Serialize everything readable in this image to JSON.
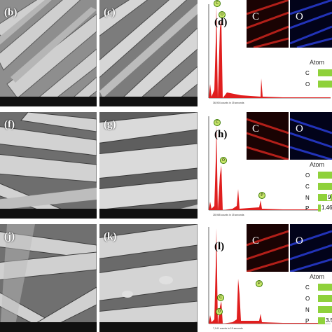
{
  "sem_panels": [
    {
      "label": "(b)"
    },
    {
      "label": "(c)"
    },
    {
      "label": "(f)"
    },
    {
      "label": "(g)"
    },
    {
      "label": "(j)"
    },
    {
      "label": "(k)"
    }
  ],
  "edx_panels": [
    {
      "label": "(d)",
      "maps": [
        {
          "label": "C",
          "color": "#d8261f"
        },
        {
          "label": "O",
          "color": "#2a3fe0"
        }
      ],
      "atomic_title": "Atom",
      "elements": [
        {
          "symbol": "C",
          "value": ""
        },
        {
          "symbol": "O",
          "value": ""
        }
      ],
      "peaks": [
        "C",
        "O"
      ],
      "counts_note": "36,904 counts in 15 seconds"
    },
    {
      "label": "(h)",
      "maps": [
        {
          "label": "C",
          "color": "#d8261f"
        },
        {
          "label": "O",
          "color": "#2a3fe0"
        }
      ],
      "atomic_title": "Atom",
      "elements": [
        {
          "symbol": "O",
          "value": ""
        },
        {
          "symbol": "C",
          "value": ""
        },
        {
          "symbol": "N",
          "value": "9"
        },
        {
          "symbol": "P",
          "value": "1.46"
        }
      ],
      "peaks": [
        "C",
        "O",
        "P"
      ],
      "counts_note": "28,965 counts in 15 seconds"
    },
    {
      "label": "(l)",
      "maps": [
        {
          "label": "C",
          "color": "#d8261f"
        },
        {
          "label": "O",
          "color": "#2a3fe0"
        }
      ],
      "atomic_title": "Atom",
      "elements": [
        {
          "symbol": "C",
          "value": ""
        },
        {
          "symbol": "O",
          "value": ""
        },
        {
          "symbol": "N",
          "value": ""
        },
        {
          "symbol": "P",
          "value": "3.5"
        }
      ],
      "peaks": [
        "C",
        "O",
        "P"
      ],
      "counts_note": "7,141 counts in 15 seconds"
    }
  ]
}
